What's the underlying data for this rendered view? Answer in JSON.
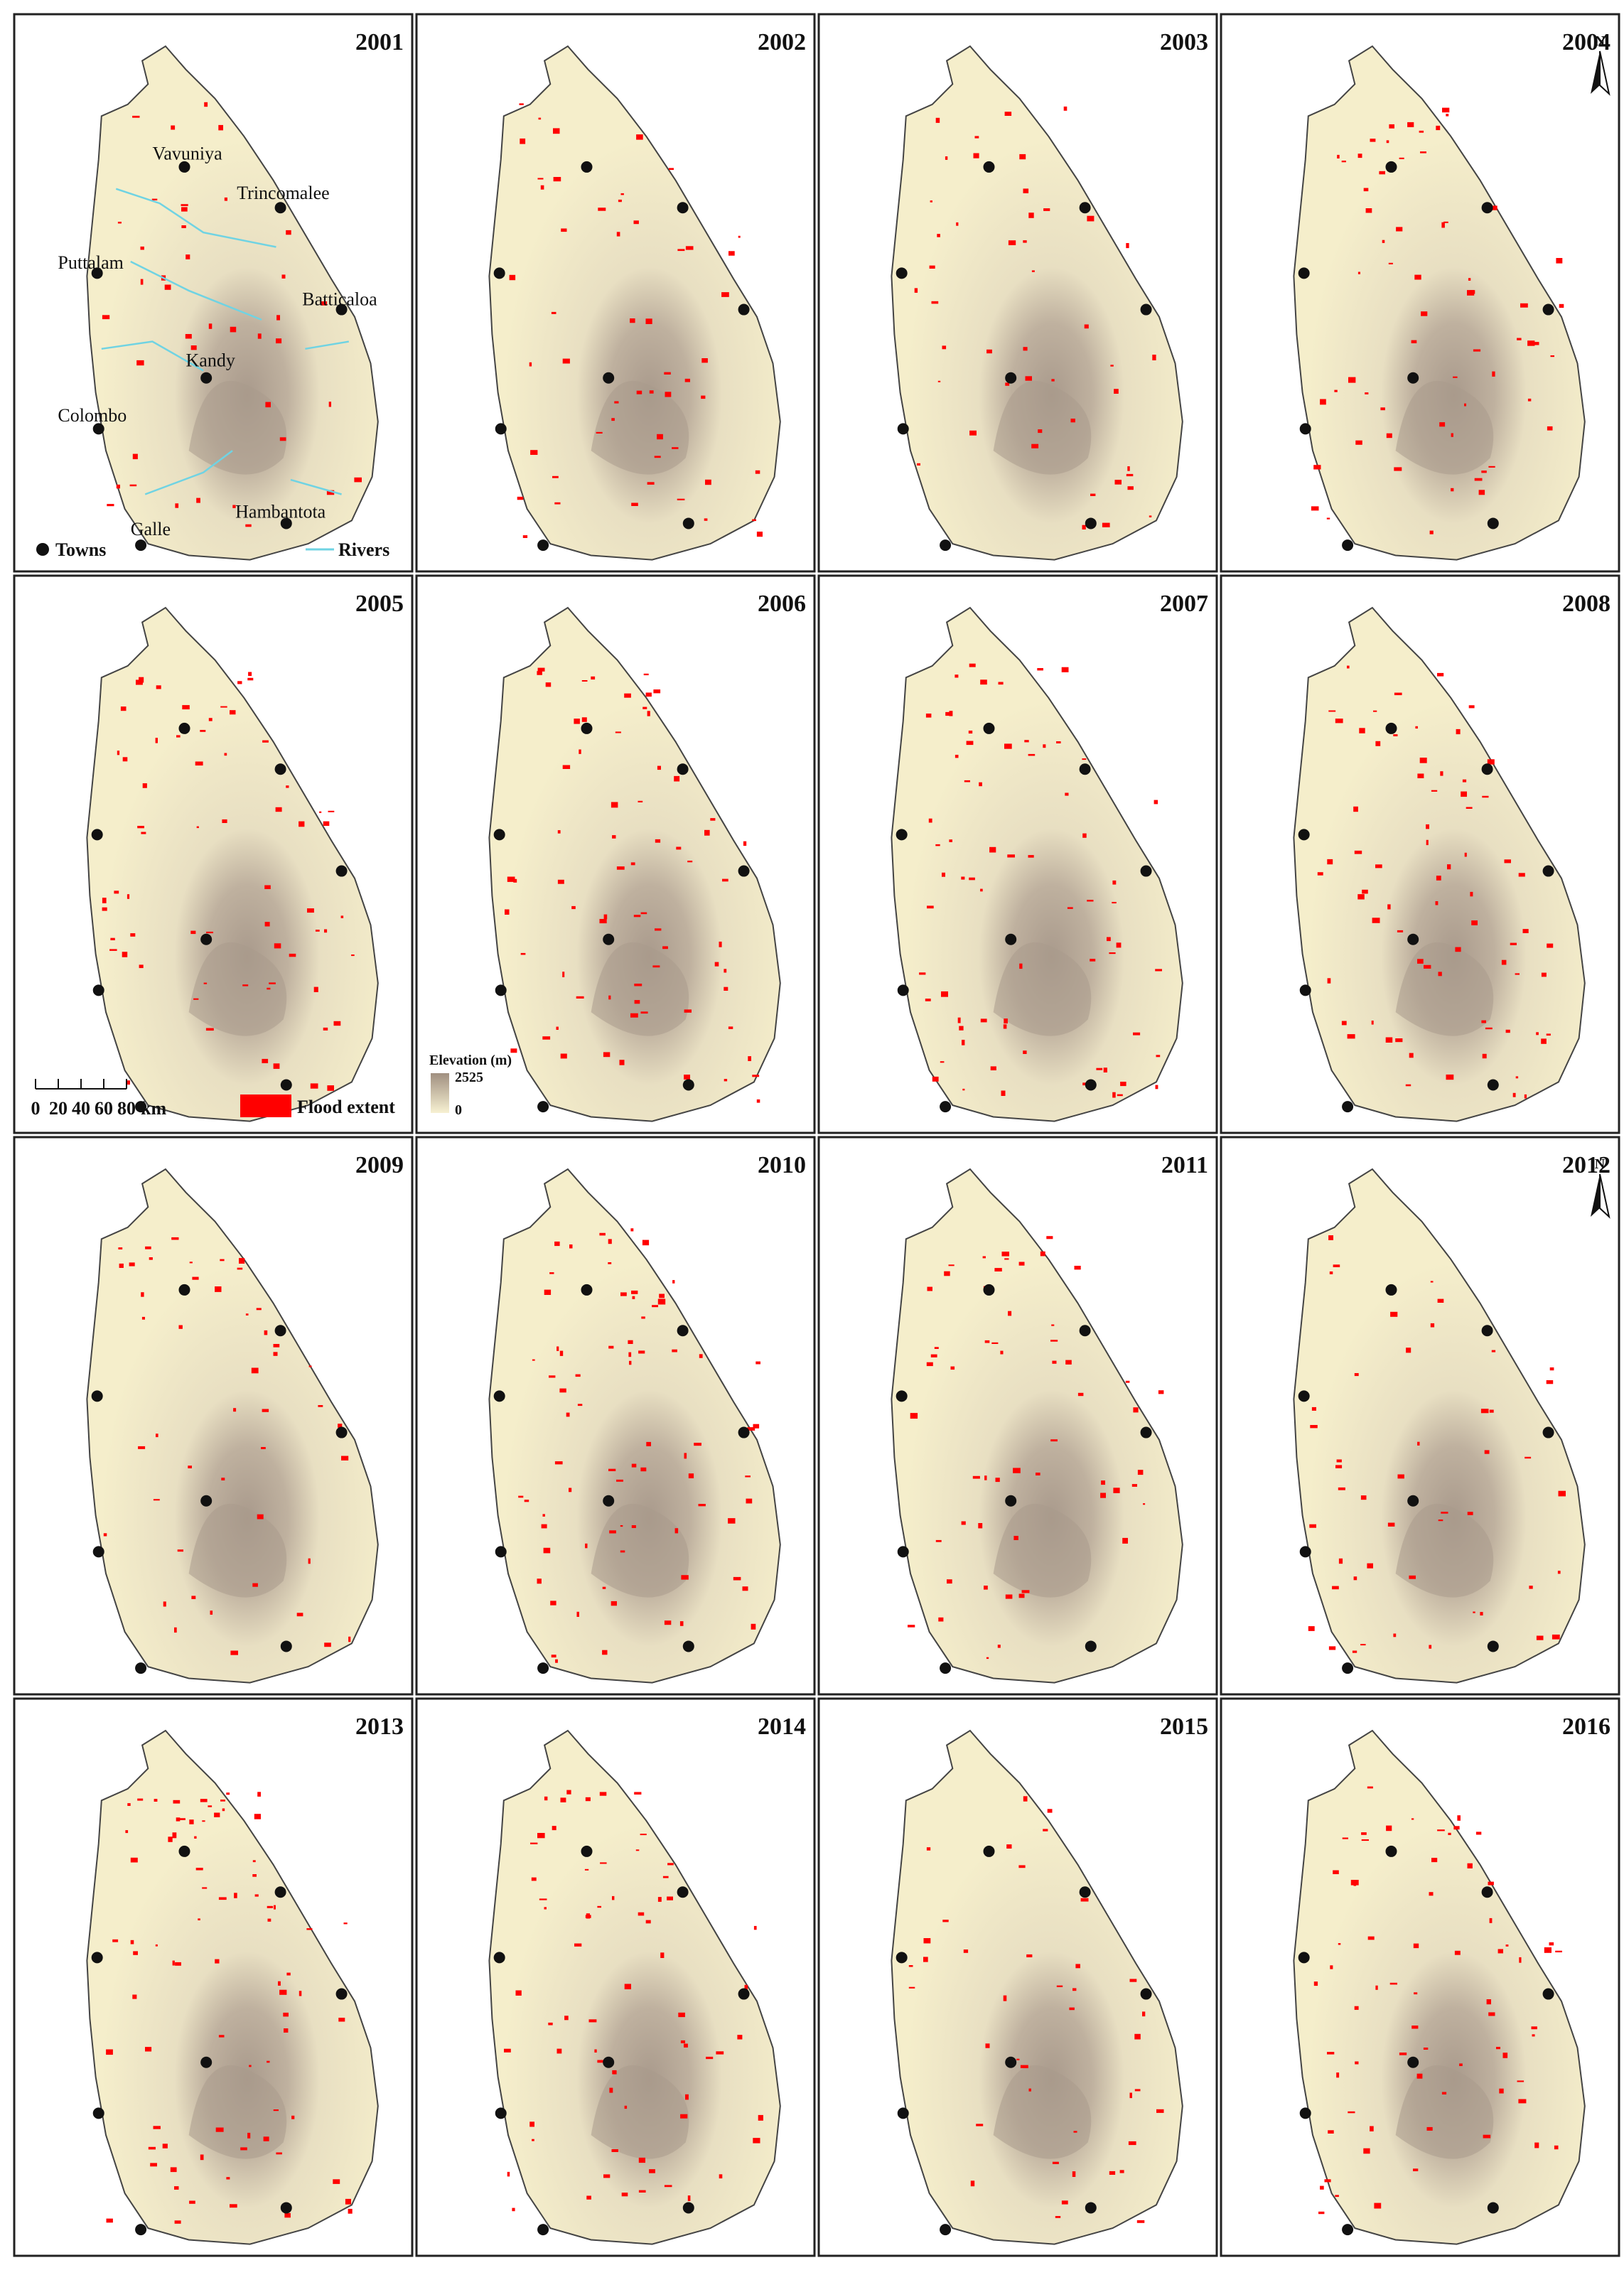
{
  "panels": [
    {
      "year": "2001"
    },
    {
      "year": "2002"
    },
    {
      "year": "2003"
    },
    {
      "year": "2004"
    },
    {
      "year": "2005"
    },
    {
      "year": "2006"
    },
    {
      "year": "2007"
    },
    {
      "year": "2008"
    },
    {
      "year": "2009"
    },
    {
      "year": "2010"
    },
    {
      "year": "2011"
    },
    {
      "year": "2012"
    },
    {
      "year": "2013"
    },
    {
      "year": "2014"
    },
    {
      "year": "2015"
    },
    {
      "year": "2016"
    }
  ],
  "towns": [
    "Vavuniya",
    "Trincomalee",
    "Puttalam",
    "Batticaloa",
    "Kandy",
    "Colombo",
    "Galle",
    "Hambantota"
  ],
  "legend": {
    "towns": "Towns",
    "rivers": "Rivers",
    "flood_extent": "Flood extent",
    "elevation_title": "Elevation (m)",
    "elevation_max": "2525",
    "elevation_min": "0"
  },
  "scale_bar": {
    "labels": [
      "0",
      "20",
      "40",
      "60",
      "80"
    ],
    "unit": "km"
  },
  "north_arrow": "N"
}
